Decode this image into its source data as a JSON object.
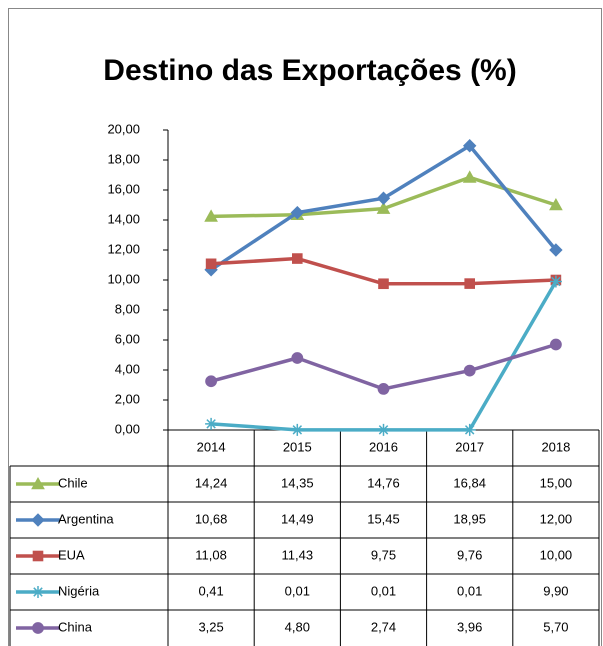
{
  "chart_data": {
    "type": "line",
    "title": "Destino das Exportações (%)",
    "categories": [
      "2014",
      "2015",
      "2016",
      "2017",
      "2018"
    ],
    "series": [
      {
        "name": "Chile",
        "color": "#9BBB59",
        "marker": "triangle",
        "values": [
          14.24,
          14.35,
          14.76,
          16.84,
          15.0
        ],
        "value_labels": [
          "14,24",
          "14,35",
          "14,76",
          "16,84",
          "15,00"
        ]
      },
      {
        "name": "Argentina",
        "color": "#4F81BD",
        "marker": "diamond",
        "values": [
          10.68,
          14.49,
          15.45,
          18.95,
          12.0
        ],
        "value_labels": [
          "10,68",
          "14,49",
          "15,45",
          "18,95",
          "12,00"
        ]
      },
      {
        "name": "EUA",
        "color": "#C0504D",
        "marker": "square",
        "values": [
          11.08,
          11.43,
          9.75,
          9.76,
          10.0
        ],
        "value_labels": [
          "11,08",
          "11,43",
          "9,75",
          "9,76",
          "10,00"
        ]
      },
      {
        "name": "Nigéria",
        "color": "#4BACC6",
        "marker": "star",
        "values": [
          0.41,
          0.01,
          0.01,
          0.01,
          9.9
        ],
        "value_labels": [
          "0,41",
          "0,01",
          "0,01",
          "0,01",
          "9,90"
        ]
      },
      {
        "name": "China",
        "color": "#8064A2",
        "marker": "circle",
        "values": [
          3.25,
          4.8,
          2.74,
          3.96,
          5.7
        ],
        "value_labels": [
          "3,25",
          "4,80",
          "2,74",
          "3,96",
          "5,70"
        ]
      }
    ],
    "ylim": [
      0,
      20
    ],
    "yticks": [
      {
        "value": 0,
        "label": "0,00"
      },
      {
        "value": 2,
        "label": "2,00"
      },
      {
        "value": 4,
        "label": "4,00"
      },
      {
        "value": 6,
        "label": "6,00"
      },
      {
        "value": 8,
        "label": "8,00"
      },
      {
        "value": 10,
        "label": "10,00"
      },
      {
        "value": 12,
        "label": "12,00"
      },
      {
        "value": 14,
        "label": "14,00"
      },
      {
        "value": 16,
        "label": "16,00"
      },
      {
        "value": 18,
        "label": "18,00"
      },
      {
        "value": 20,
        "label": "20,00"
      }
    ],
    "grid": false
  }
}
